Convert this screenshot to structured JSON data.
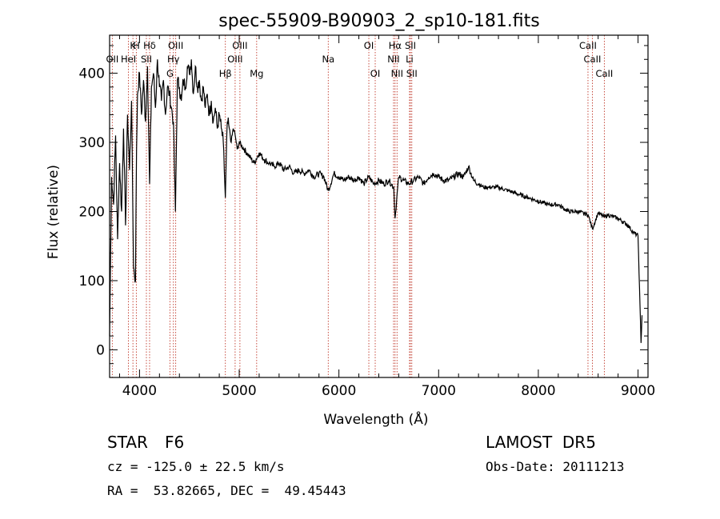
{
  "chart_data": {
    "type": "line",
    "title": "spec-55909-B90903_2_sp10-181.fits",
    "xlabel": "Wavelength (Å)",
    "ylabel": "Flux (relative)",
    "xlim": [
      3700,
      9100
    ],
    "ylim": [
      -40,
      455
    ],
    "xticks": [
      4000,
      5000,
      6000,
      7000,
      8000,
      9000
    ],
    "yticks": [
      0,
      100,
      200,
      300,
      400
    ],
    "grid": false,
    "series": [
      {
        "color": "#000000",
        "x": [
          3700,
          3720,
          3740,
          3760,
          3780,
          3800,
          3820,
          3840,
          3860,
          3880,
          3900,
          3920,
          3940,
          3960,
          3970,
          3980,
          4000,
          4020,
          4040,
          4060,
          4080,
          4101,
          4120,
          4140,
          4160,
          4180,
          4200,
          4220,
          4240,
          4260,
          4280,
          4300,
          4320,
          4340,
          4360,
          4380,
          4400,
          4420,
          4440,
          4460,
          4480,
          4500,
          4520,
          4540,
          4560,
          4580,
          4600,
          4620,
          4640,
          4660,
          4680,
          4700,
          4720,
          4740,
          4760,
          4780,
          4800,
          4820,
          4840,
          4861,
          4880,
          4900,
          4920,
          4940,
          4960,
          4980,
          5000,
          5050,
          5100,
          5150,
          5200,
          5250,
          5300,
          5350,
          5400,
          5450,
          5500,
          5550,
          5600,
          5650,
          5700,
          5750,
          5800,
          5850,
          5893,
          5950,
          6000,
          6050,
          6100,
          6150,
          6200,
          6250,
          6300,
          6350,
          6400,
          6450,
          6500,
          6550,
          6563,
          6600,
          6650,
          6700,
          6750,
          6800,
          6850,
          6900,
          6950,
          7000,
          7050,
          7100,
          7150,
          7200,
          7250,
          7300,
          7350,
          7400,
          7450,
          7500,
          7600,
          7700,
          7800,
          7900,
          8000,
          8100,
          8200,
          8300,
          8400,
          8500,
          8542,
          8600,
          8662,
          8700,
          8800,
          8900,
          8950,
          9000,
          9030,
          9040
        ],
        "y": [
          20,
          250,
          210,
          310,
          160,
          270,
          200,
          320,
          180,
          340,
          260,
          360,
          120,
          100,
          290,
          370,
          400,
          340,
          390,
          330,
          410,
          240,
          380,
          400,
          350,
          420,
          380,
          360,
          390,
          340,
          380,
          370,
          350,
          330,
          200,
          390,
          380,
          360,
          390,
          380,
          410,
          400,
          420,
          370,
          410,
          380,
          390,
          360,
          380,
          350,
          370,
          340,
          360,
          330,
          350,
          320,
          340,
          320,
          300,
          220,
          330,
          320,
          300,
          320,
          310,
          290,
          300,
          290,
          280,
          270,
          285,
          275,
          270,
          265,
          270,
          260,
          265,
          255,
          260,
          255,
          260,
          250,
          255,
          250,
          230,
          255,
          250,
          245,
          250,
          245,
          250,
          240,
          250,
          240,
          245,
          240,
          245,
          235,
          190,
          250,
          245,
          240,
          245,
          250,
          240,
          250,
          255,
          250,
          245,
          245,
          250,
          255,
          250,
          265,
          245,
          240,
          235,
          235,
          235,
          230,
          225,
          220,
          215,
          210,
          210,
          200,
          200,
          195,
          175,
          198,
          192,
          195,
          190,
          180,
          170,
          165,
          10,
          50
        ]
      }
    ],
    "lines": [
      {
        "label": "Hδ",
        "x": 4101,
        "row": 0
      },
      {
        "label": "K",
        "x": 3934,
        "row": 0
      },
      {
        "label": "H",
        "x": 3968,
        "row": 0
      },
      {
        "label": "Hγ",
        "x": 4340,
        "row": 1
      },
      {
        "label": "Hβ",
        "x": 4861,
        "row": 2
      },
      {
        "label": "Hα",
        "x": 6563,
        "row": 0
      },
      {
        "label": "OII",
        "x": 3727,
        "row": 1
      },
      {
        "label": "HeI",
        "x": 3889,
        "row": 1
      },
      {
        "label": "SII",
        "x": 4069,
        "row": 1
      },
      {
        "label": "OIII",
        "x": 4363,
        "row": 0
      },
      {
        "label": "G",
        "x": 4305,
        "row": 2
      },
      {
        "label": "OIII",
        "x": 4959,
        "row": 1
      },
      {
        "label": "OIII",
        "x": 5007,
        "row": 0
      },
      {
        "label": "Mg",
        "x": 5175,
        "row": 2
      },
      {
        "label": "Na",
        "x": 5893,
        "row": 1
      },
      {
        "label": "OI",
        "x": 6300,
        "row": 0
      },
      {
        "label": "OI",
        "x": 6364,
        "row": 2
      },
      {
        "label": "NII",
        "x": 6548,
        "row": 1
      },
      {
        "label": "NII",
        "x": 6583,
        "row": 2
      },
      {
        "label": "Li",
        "x": 6708,
        "row": 1
      },
      {
        "label": "SII",
        "x": 6717,
        "row": 0
      },
      {
        "label": "SII",
        "x": 6731,
        "row": 2
      },
      {
        "label": "CaII",
        "x": 8498,
        "row": 0
      },
      {
        "label": "CaII",
        "x": 8542,
        "row": 1
      },
      {
        "label": "CaII",
        "x": 8662,
        "row": 2
      }
    ]
  },
  "info": {
    "class": "STAR",
    "subclass": "F6",
    "survey": "LAMOST  DR5",
    "cz": "cz = -125.0 ± 22.5 km/s",
    "obsdate": "Obs-Date: 20111213",
    "radec": "RA =  53.82665, DEC =  49.45443"
  }
}
